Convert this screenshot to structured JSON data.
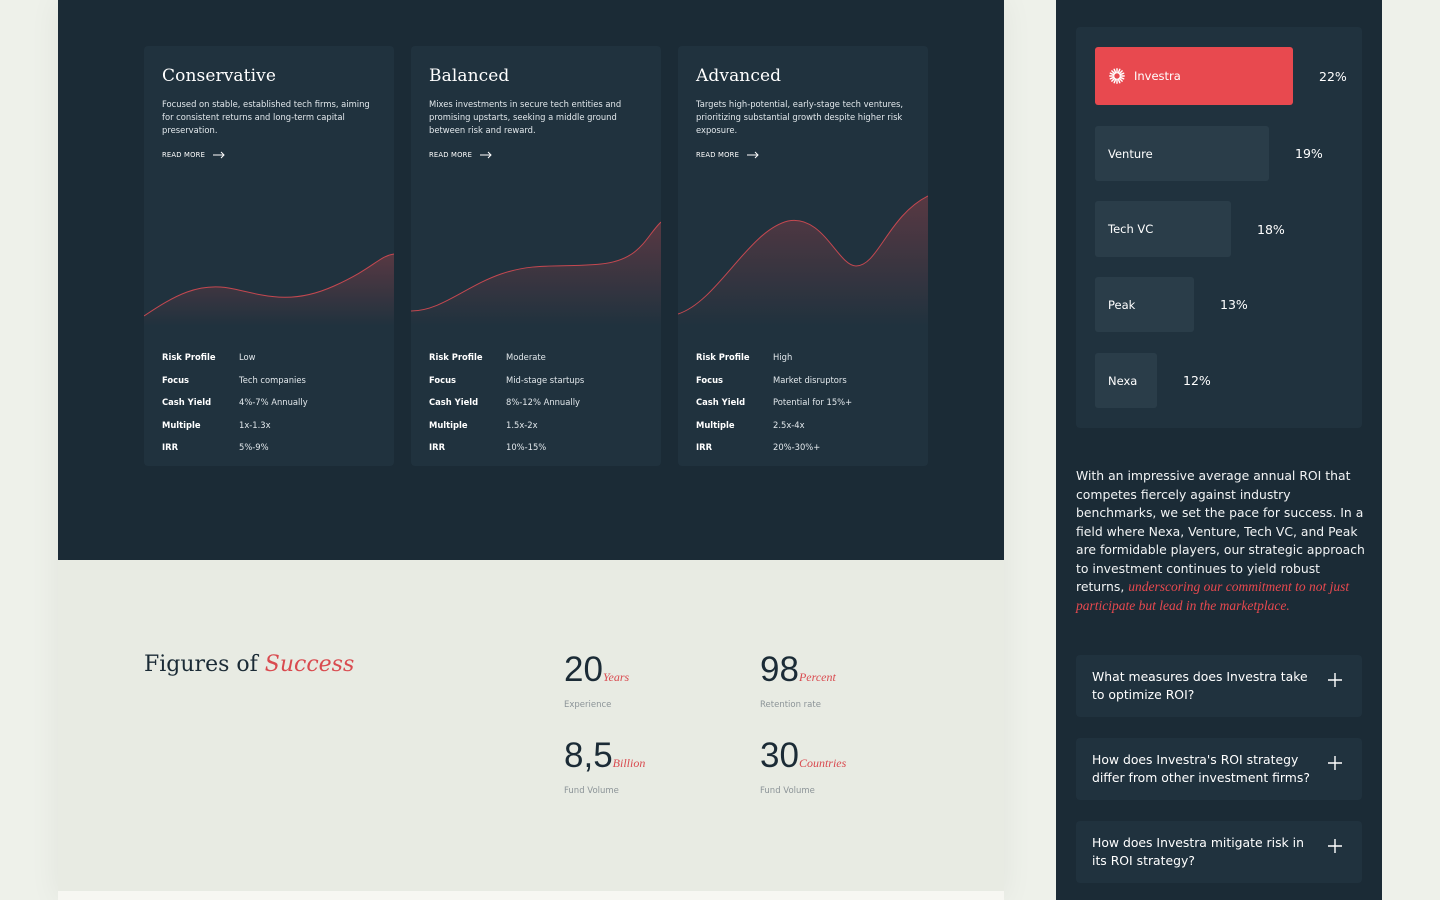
{
  "cards": [
    {
      "title": "Conservative",
      "description": "Focused on stable, established tech firms, aiming for consistent returns and long-term capital preservation.",
      "read_more": "READ MORE",
      "metrics": [
        {
          "label": "Risk Profile",
          "value": "Low"
        },
        {
          "label": "Focus",
          "value": "Tech companies"
        },
        {
          "label": "Cash Yield",
          "value": "4%-7% Annually"
        },
        {
          "label": "Multiple",
          "value": "1x-1.3x"
        },
        {
          "label": "IRR",
          "value": "5%-9%"
        }
      ]
    },
    {
      "title": "Balanced",
      "description": "Mixes investments in secure tech entities and promising upstarts, seeking a middle ground between risk and reward.",
      "read_more": "READ MORE",
      "metrics": [
        {
          "label": "Risk Profile",
          "value": "Moderate"
        },
        {
          "label": "Focus",
          "value": "Mid-stage startups"
        },
        {
          "label": "Cash Yield",
          "value": "8%-12% Annually"
        },
        {
          "label": "Multiple",
          "value": "1.5x-2x"
        },
        {
          "label": "IRR",
          "value": "10%-15%"
        }
      ]
    },
    {
      "title": "Advanced",
      "description": "Targets high-potential, early-stage tech ventures, prioritizing substantial growth despite higher risk exposure.",
      "read_more": "READ MORE",
      "metrics": [
        {
          "label": "Risk Profile",
          "value": "High"
        },
        {
          "label": "Focus",
          "value": "Market disruptors"
        },
        {
          "label": "Cash Yield",
          "value": "Potential for 15%+"
        },
        {
          "label": "Multiple",
          "value": "2.5x-4x"
        },
        {
          "label": "IRR",
          "value": "20%-30%+"
        }
      ]
    }
  ],
  "figures": {
    "title_plain": "Figures of",
    "title_accent": "Success",
    "items": [
      {
        "number": "20",
        "unit": "Years",
        "caption": "Experience"
      },
      {
        "number": "98",
        "unit": "Percent",
        "caption": "Retention rate"
      },
      {
        "number": "8,5",
        "unit": "Billion",
        "caption": "Fund Volume"
      },
      {
        "number": "30",
        "unit": "Countries",
        "caption": "Fund Volume"
      }
    ]
  },
  "roi_bars": [
    {
      "name": "Investra",
      "percent": "22%",
      "value": 22,
      "highlight": true,
      "icon": "investra-logo-icon"
    },
    {
      "name": "Venture",
      "percent": "19%",
      "value": 19,
      "highlight": false
    },
    {
      "name": "Tech VC",
      "percent": "18%",
      "value": 18,
      "highlight": false
    },
    {
      "name": "Peak",
      "percent": "13%",
      "value": 13,
      "highlight": false
    },
    {
      "name": "Nexa",
      "percent": "12%",
      "value": 12,
      "highlight": false
    }
  ],
  "roi_text": {
    "plain": "With an impressive average annual ROI that competes fiercely against industry benchmarks, we set the pace for success. In a field where Nexa, Venture, Tech VC, and Peak are formidable players, our strategic approach to investment continues to yield robust returns,",
    "accent": "underscoring our commitment to not just participate but lead in the marketplace."
  },
  "faqs": [
    {
      "question": "What measures does Investra take to optimize ROI?"
    },
    {
      "question": "How does Investra's ROI strategy differ from other investment firms?"
    },
    {
      "question": "How does Investra mitigate risk in its ROI strategy?"
    }
  ],
  "colors": {
    "accent": "#e8494f",
    "dark_bg": "#1b2b36",
    "card_bg": "#20323e",
    "light_bg": "#e8ebe3"
  }
}
